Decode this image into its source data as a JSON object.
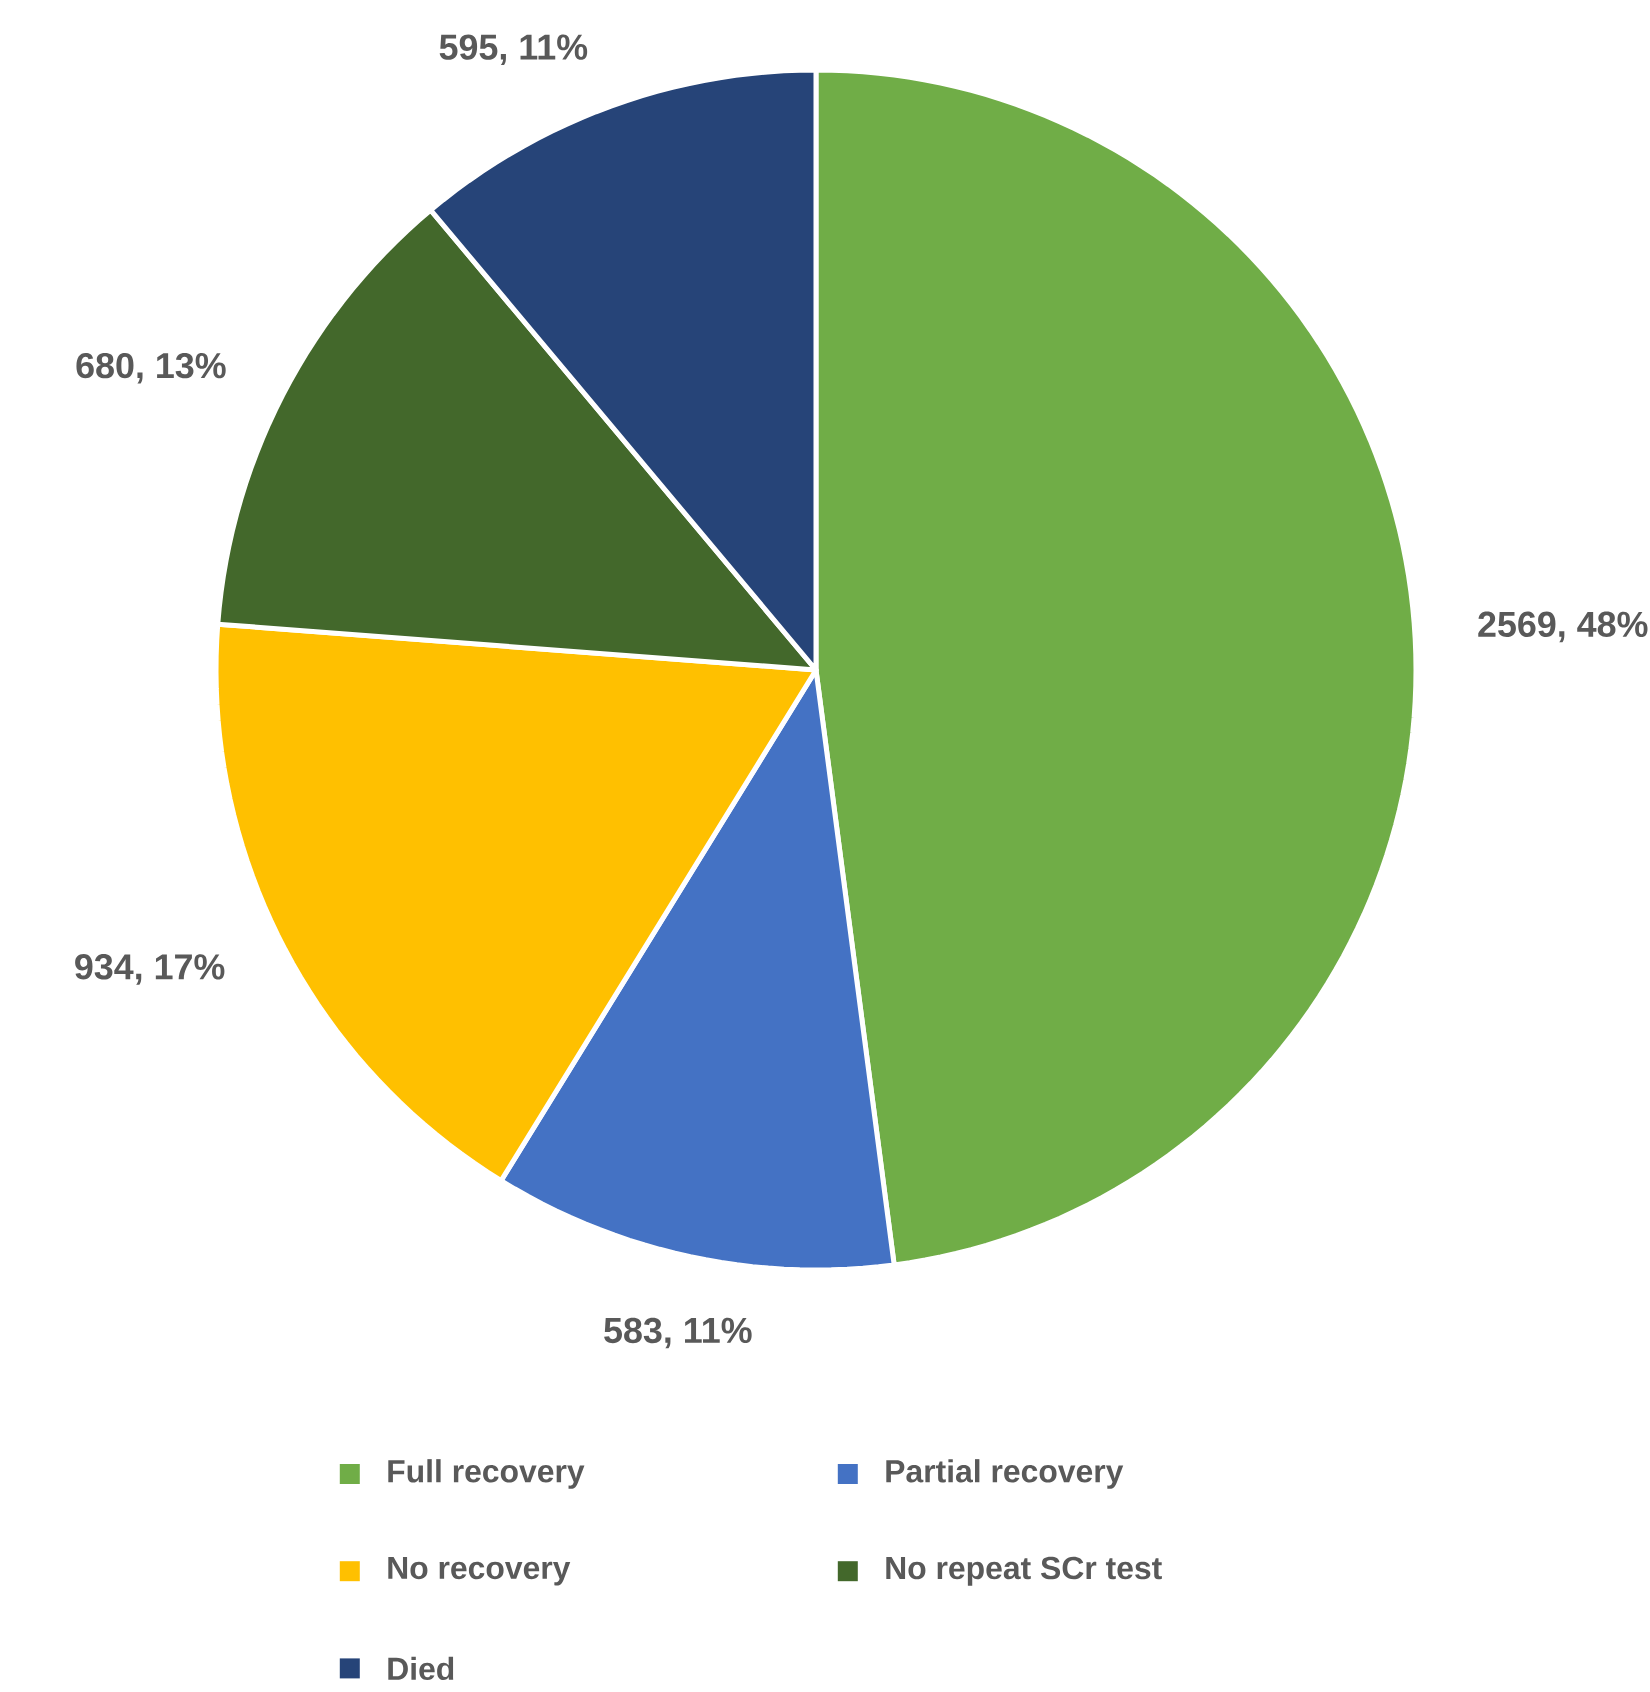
{
  "chart_data": {
    "type": "pie",
    "categories": [
      "Full recovery",
      "Partial recovery",
      "No recovery",
      "No repeat SCr test",
      "Died"
    ],
    "values": [
      2569,
      583,
      934,
      680,
      595
    ],
    "value_labels": [
      "2569, 48%",
      "583, 11%",
      "934, 17%",
      "680, 13%",
      "595, 11%"
    ],
    "colors": [
      "#70ad47",
      "#4472c4",
      "#ffc000",
      "#43682b",
      "#264478"
    ],
    "legend": "bottom"
  }
}
